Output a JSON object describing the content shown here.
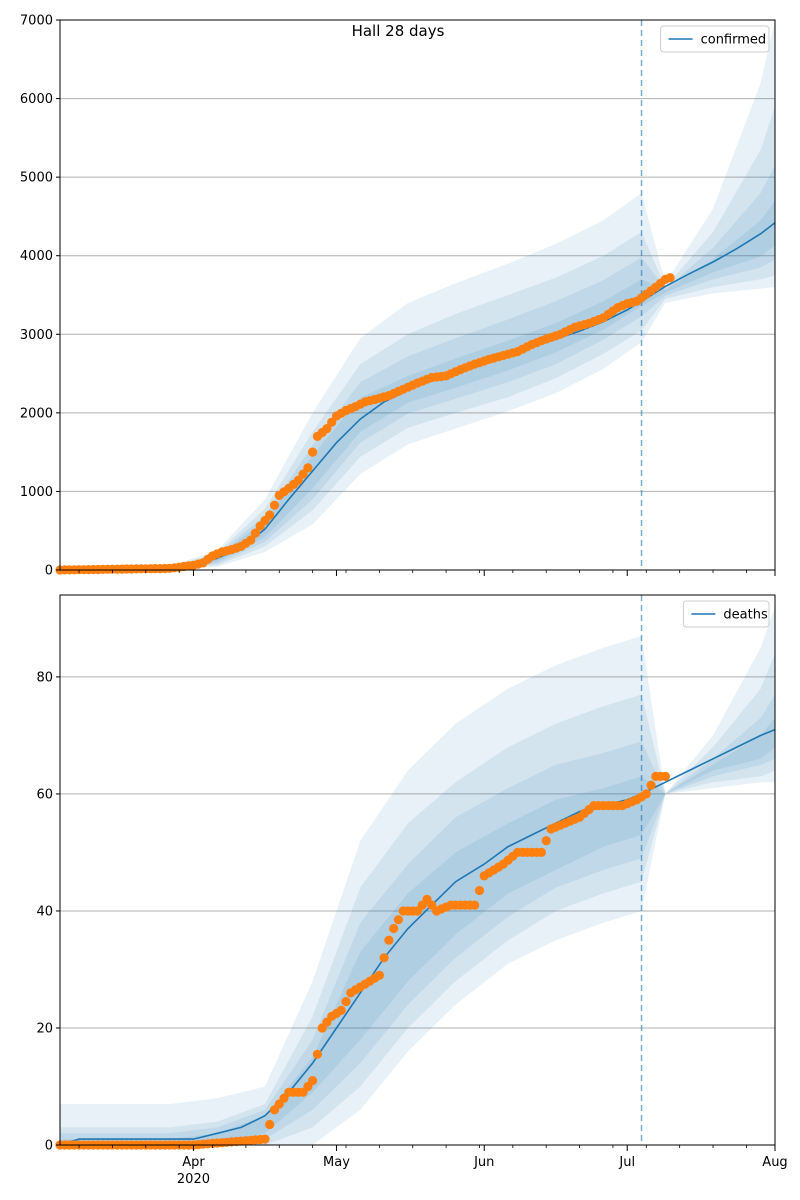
{
  "figure": {
    "title": "Hall 28 days"
  },
  "colors": {
    "model": "#1f77b4",
    "observed": "#ff7f0e",
    "band": "#1f77b4",
    "grid": "#b0b0b0",
    "cutoff": "#1f77b4"
  },
  "chart_data": [
    {
      "type": "line",
      "name": "confirmed",
      "legend_label": "confirmed",
      "legend_position": "top-right",
      "grid": "y",
      "ylim": [
        0,
        7000
      ],
      "yticks": [
        0,
        1000,
        2000,
        3000,
        4000,
        5000,
        6000,
        7000
      ],
      "x_domain": [
        "2020-03-04",
        "2020-08-01"
      ],
      "cutoff_date": "2020-07-04",
      "series": [
        {
          "name": "confirmed",
          "x": [
            "2020-03-04",
            "2020-03-10",
            "2020-03-20",
            "2020-03-27",
            "2020-04-01",
            "2020-04-06",
            "2020-04-11",
            "2020-04-16",
            "2020-04-21",
            "2020-04-26",
            "2020-05-01",
            "2020-05-06",
            "2020-05-11",
            "2020-05-16",
            "2020-05-21",
            "2020-05-26",
            "2020-06-01",
            "2020-06-06",
            "2020-06-11",
            "2020-06-16",
            "2020-06-21",
            "2020-06-26",
            "2020-07-01",
            "2020-07-04",
            "2020-07-09",
            "2020-07-14",
            "2020-07-19",
            "2020-07-24",
            "2020-07-29",
            "2020-08-01"
          ],
          "y": [
            0,
            0,
            5,
            20,
            60,
            150,
            280,
            520,
            900,
            1260,
            1620,
            1920,
            2140,
            2290,
            2420,
            2530,
            2640,
            2740,
            2840,
            2940,
            3040,
            3160,
            3310,
            3420,
            3610,
            3770,
            3920,
            4090,
            4280,
            4420
          ]
        }
      ],
      "bands": [
        {
          "x": [
            "2020-03-04",
            "2020-03-27",
            "2020-04-06",
            "2020-04-16",
            "2020-04-26",
            "2020-05-06",
            "2020-05-16",
            "2020-05-26",
            "2020-06-06",
            "2020-06-16",
            "2020-06-26",
            "2020-07-04",
            "2020-07-09",
            "2020-07-19",
            "2020-07-29",
            "2020-08-01"
          ],
          "lo": [
            0,
            10,
            40,
            230,
            580,
            1220,
            1600,
            1800,
            2020,
            2250,
            2560,
            2900,
            3400,
            3520,
            3580,
            3600
          ],
          "hi": [
            0,
            50,
            250,
            900,
            2000,
            2950,
            3400,
            3650,
            3900,
            4150,
            4450,
            4800,
            3650,
            4600,
            6200,
            7000
          ]
        },
        {
          "x": [
            "2020-03-04",
            "2020-03-27",
            "2020-04-06",
            "2020-04-16",
            "2020-04-26",
            "2020-05-06",
            "2020-05-16",
            "2020-05-26",
            "2020-06-06",
            "2020-06-16",
            "2020-06-26",
            "2020-07-04",
            "2020-07-09",
            "2020-07-19",
            "2020-07-29",
            "2020-08-01"
          ],
          "lo": [
            0,
            12,
            60,
            300,
            760,
            1440,
            1810,
            2000,
            2200,
            2440,
            2750,
            3050,
            3450,
            3600,
            3700,
            3750
          ],
          "hi": [
            0,
            40,
            220,
            780,
            1760,
            2620,
            3000,
            3260,
            3500,
            3720,
            4000,
            4300,
            3600,
            4300,
            5350,
            5900
          ]
        },
        {
          "x": [
            "2020-03-04",
            "2020-03-27",
            "2020-04-06",
            "2020-04-16",
            "2020-04-26",
            "2020-05-06",
            "2020-05-16",
            "2020-05-26",
            "2020-06-06",
            "2020-06-16",
            "2020-06-26",
            "2020-07-04",
            "2020-07-09",
            "2020-07-19",
            "2020-07-29",
            "2020-08-01"
          ],
          "lo": [
            0,
            14,
            80,
            360,
            900,
            1620,
            1990,
            2180,
            2390,
            2620,
            2930,
            3230,
            3490,
            3700,
            3850,
            3950
          ],
          "hi": [
            0,
            33,
            200,
            690,
            1590,
            2390,
            2720,
            2950,
            3190,
            3420,
            3690,
            3980,
            3580,
            4100,
            4800,
            5150
          ]
        },
        {
          "x": [
            "2020-03-04",
            "2020-03-27",
            "2020-04-06",
            "2020-04-16",
            "2020-04-26",
            "2020-05-06",
            "2020-05-16",
            "2020-05-26",
            "2020-06-06",
            "2020-06-16",
            "2020-06-26",
            "2020-07-04",
            "2020-07-09",
            "2020-07-19",
            "2020-07-29",
            "2020-08-01"
          ],
          "lo": [
            0,
            16,
            105,
            420,
            1040,
            1760,
            2130,
            2320,
            2540,
            2770,
            3060,
            3360,
            3530,
            3790,
            3990,
            4130
          ],
          "hi": [
            0,
            26,
            180,
            620,
            1460,
            2190,
            2470,
            2690,
            2920,
            3140,
            3420,
            3700,
            3560,
            3960,
            4450,
            4700
          ]
        }
      ],
      "observed": {
        "x": [
          "2020-03-04",
          "2020-03-27",
          "2020-04-01",
          "2020-04-03",
          "2020-04-05",
          "2020-04-07",
          "2020-04-09",
          "2020-04-11",
          "2020-04-13",
          "2020-04-15",
          "2020-04-17",
          "2020-04-19",
          "2020-04-21",
          "2020-04-23",
          "2020-04-25",
          "2020-04-27",
          "2020-04-29",
          "2020-05-01",
          "2020-05-03",
          "2020-05-05",
          "2020-05-07",
          "2020-05-09",
          "2020-05-12",
          "2020-05-15",
          "2020-05-18",
          "2020-05-21",
          "2020-05-24",
          "2020-05-27",
          "2020-05-30",
          "2020-06-02",
          "2020-06-05",
          "2020-06-08",
          "2020-06-11",
          "2020-06-14",
          "2020-06-17",
          "2020-06-20",
          "2020-06-23",
          "2020-06-26",
          "2020-06-29",
          "2020-07-01",
          "2020-07-03",
          "2020-07-05",
          "2020-07-07",
          "2020-07-09",
          "2020-07-10"
        ],
        "y": [
          0,
          20,
          60,
          90,
          180,
          230,
          260,
          300,
          380,
          560,
          700,
          950,
          1040,
          1140,
          1300,
          1700,
          1800,
          1960,
          2030,
          2080,
          2140,
          2170,
          2220,
          2300,
          2380,
          2450,
          2470,
          2550,
          2620,
          2680,
          2730,
          2780,
          2870,
          2940,
          3000,
          3090,
          3140,
          3210,
          3340,
          3390,
          3420,
          3510,
          3600,
          3700,
          3720
        ]
      }
    },
    {
      "type": "line",
      "name": "deaths",
      "legend_label": "deaths",
      "legend_position": "top-right",
      "grid": "y",
      "ylim": [
        0,
        94
      ],
      "yticks": [
        0,
        20,
        40,
        60,
        80
      ],
      "x_domain": [
        "2020-03-04",
        "2020-08-01"
      ],
      "xticks": [
        {
          "date": "2020-04-01",
          "label": "Apr",
          "sublabel": "2020"
        },
        {
          "date": "2020-05-01",
          "label": "May"
        },
        {
          "date": "2020-06-01",
          "label": "Jun"
        },
        {
          "date": "2020-07-01",
          "label": "Jul"
        },
        {
          "date": "2020-08-01",
          "label": "Aug"
        }
      ],
      "cutoff_date": "2020-07-04",
      "series": [
        {
          "name": "deaths",
          "x": [
            "2020-03-04",
            "2020-03-08",
            "2020-03-20",
            "2020-04-01",
            "2020-04-06",
            "2020-04-11",
            "2020-04-16",
            "2020-04-21",
            "2020-04-26",
            "2020-05-01",
            "2020-05-06",
            "2020-05-11",
            "2020-05-16",
            "2020-05-21",
            "2020-05-26",
            "2020-06-01",
            "2020-06-06",
            "2020-06-11",
            "2020-06-16",
            "2020-06-21",
            "2020-06-26",
            "2020-07-01",
            "2020-07-04",
            "2020-07-09",
            "2020-07-14",
            "2020-07-19",
            "2020-07-24",
            "2020-07-29",
            "2020-08-01"
          ],
          "y": [
            0,
            1,
            1,
            1,
            2,
            3,
            5,
            9,
            14,
            20,
            26,
            32,
            37,
            41,
            45,
            48,
            51,
            53,
            55,
            57,
            58,
            59,
            60,
            62,
            64,
            66,
            68,
            70,
            71
          ]
        }
      ],
      "bands": [
        {
          "x": [
            "2020-03-04",
            "2020-03-27",
            "2020-04-06",
            "2020-04-16",
            "2020-04-26",
            "2020-05-06",
            "2020-05-16",
            "2020-05-26",
            "2020-06-06",
            "2020-06-16",
            "2020-06-26",
            "2020-07-04",
            "2020-07-09",
            "2020-07-19",
            "2020-07-29",
            "2020-08-01"
          ],
          "lo": [
            0,
            0,
            0,
            0,
            0,
            6,
            16,
            24,
            31,
            35,
            38,
            40,
            60,
            61,
            62,
            62
          ],
          "hi": [
            7,
            7,
            8,
            10,
            28,
            52,
            64,
            72,
            78,
            82,
            85,
            87,
            60,
            70,
            85,
            92
          ]
        },
        {
          "x": [
            "2020-03-04",
            "2020-03-27",
            "2020-04-06",
            "2020-04-16",
            "2020-04-26",
            "2020-05-06",
            "2020-05-16",
            "2020-05-26",
            "2020-06-06",
            "2020-06-16",
            "2020-06-26",
            "2020-07-04",
            "2020-07-09",
            "2020-07-19",
            "2020-07-29",
            "2020-08-01"
          ],
          "lo": [
            0,
            0,
            0,
            0,
            3,
            10,
            20,
            28,
            35,
            40,
            43,
            45,
            60,
            62,
            63,
            64
          ],
          "hi": [
            3,
            3,
            4,
            7,
            22,
            44,
            55,
            62,
            68,
            72,
            75,
            77,
            60,
            68,
            78,
            84
          ]
        },
        {
          "x": [
            "2020-03-04",
            "2020-03-27",
            "2020-04-06",
            "2020-04-16",
            "2020-04-26",
            "2020-05-06",
            "2020-05-16",
            "2020-05-26",
            "2020-06-06",
            "2020-06-16",
            "2020-06-26",
            "2020-07-04",
            "2020-07-09",
            "2020-07-19",
            "2020-07-29",
            "2020-08-01"
          ],
          "lo": [
            0,
            0,
            0,
            1,
            6,
            14,
            24,
            32,
            39,
            44,
            47,
            49,
            60,
            63,
            65,
            66
          ],
          "hi": [
            2,
            2,
            3,
            6,
            18,
            38,
            48,
            56,
            61,
            65,
            67,
            69,
            60,
            66,
            73,
            77
          ]
        },
        {
          "x": [
            "2020-03-04",
            "2020-03-27",
            "2020-04-06",
            "2020-04-16",
            "2020-04-26",
            "2020-05-06",
            "2020-05-16",
            "2020-05-26",
            "2020-06-06",
            "2020-06-16",
            "2020-06-26",
            "2020-07-04",
            "2020-07-09",
            "2020-07-19",
            "2020-07-29",
            "2020-08-01"
          ],
          "lo": [
            0,
            0,
            0,
            2,
            9,
            18,
            28,
            36,
            43,
            47,
            51,
            53,
            60,
            64,
            66,
            68
          ],
          "hi": [
            1,
            1,
            2,
            5,
            15,
            33,
            43,
            50,
            55,
            59,
            61,
            63,
            60,
            65,
            70,
            73
          ]
        }
      ],
      "observed": {
        "x": [
          "2020-03-04",
          "2020-04-01",
          "2020-04-16",
          "2020-04-18",
          "2020-04-21",
          "2020-04-24",
          "2020-04-26",
          "2020-04-28",
          "2020-04-30",
          "2020-05-02",
          "2020-05-04",
          "2020-05-06",
          "2020-05-08",
          "2020-05-10",
          "2020-05-12",
          "2020-05-13",
          "2020-05-15",
          "2020-05-18",
          "2020-05-20",
          "2020-05-22",
          "2020-05-25",
          "2020-05-27",
          "2020-05-30",
          "2020-06-01",
          "2020-06-05",
          "2020-06-08",
          "2020-06-10",
          "2020-06-13",
          "2020-06-15",
          "2020-06-18",
          "2020-06-21",
          "2020-06-24",
          "2020-06-27",
          "2020-06-30",
          "2020-07-03",
          "2020-07-05",
          "2020-07-07",
          "2020-07-09"
        ],
        "y": [
          0,
          0,
          1,
          6,
          9,
          9,
          11,
          20,
          22,
          23,
          26,
          27,
          28,
          29,
          35,
          37,
          40,
          40,
          42,
          40,
          41,
          41,
          41,
          46,
          48,
          50,
          50,
          50,
          54,
          55,
          56,
          58,
          58,
          58,
          59,
          60,
          63,
          63
        ]
      }
    }
  ]
}
